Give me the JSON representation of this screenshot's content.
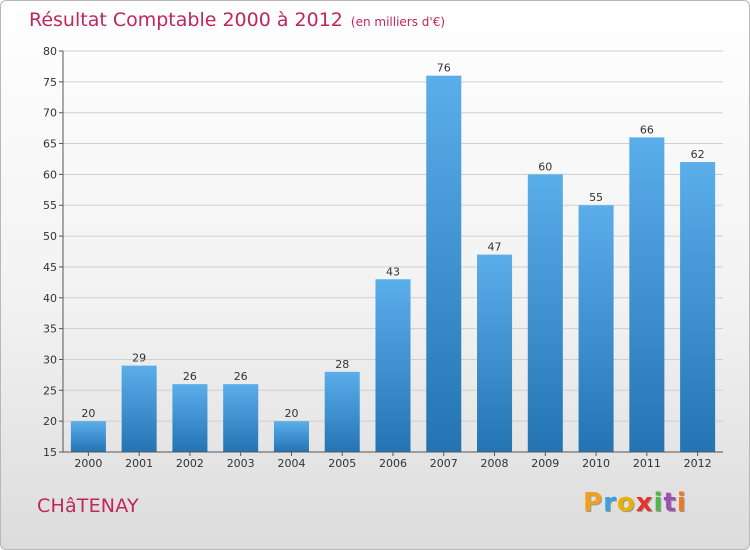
{
  "title": "Résultat Comptable 2000 à 2012",
  "subtitle": "(en milliers d'€)",
  "city": "CHâTENAY",
  "logo": {
    "letters": [
      "P",
      "r",
      "o",
      "x",
      "i",
      "t",
      "i"
    ],
    "colors": [
      "#f0a020",
      "#3aa0dc",
      "#e8b000",
      "#e8312c",
      "#4cb848",
      "#9c4fb0",
      "#f07820"
    ]
  },
  "chart_data": {
    "type": "bar",
    "categories": [
      "2000",
      "2001",
      "2002",
      "2003",
      "2004",
      "2005",
      "2006",
      "2007",
      "2008",
      "2009",
      "2010",
      "2011",
      "2012"
    ],
    "values": [
      20,
      29,
      26,
      26,
      20,
      28,
      43,
      76,
      47,
      60,
      55,
      66,
      62
    ],
    "title": "Résultat Comptable 2000 à 2012",
    "ylim": [
      15,
      80
    ],
    "yticks": [
      15,
      20,
      25,
      30,
      35,
      40,
      45,
      50,
      55,
      60,
      65,
      70,
      75,
      80
    ],
    "grid": true,
    "bar_color": "#3b91d6"
  }
}
